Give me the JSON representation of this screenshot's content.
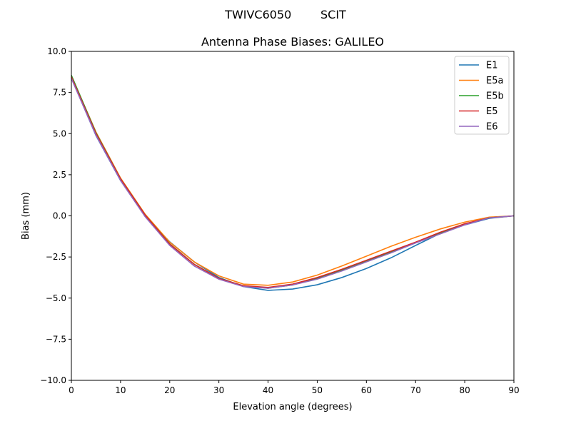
{
  "chart_data": {
    "type": "line",
    "suptitle": "TWIVC6050        SCIT",
    "title": "Antenna Phase Biases: GALILEO",
    "xlabel": "Elevation angle (degrees)",
    "ylabel": "Bias (mm)",
    "xlim": [
      0,
      90
    ],
    "ylim": [
      -10,
      10
    ],
    "xticks": [
      0,
      10,
      20,
      30,
      40,
      50,
      60,
      70,
      80,
      90
    ],
    "yticks": [
      10.0,
      7.5,
      5.0,
      2.5,
      0.0,
      -2.5,
      -5.0,
      -7.5,
      -10.0
    ],
    "ytick_labels": [
      "10.0",
      "7.5",
      "5.0",
      "2.5",
      "0.0",
      "−2.5",
      "−5.0",
      "−7.5",
      "−10.0"
    ],
    "grid": false,
    "legend_position": "top-right",
    "x": [
      0,
      5,
      10,
      15,
      20,
      25,
      30,
      35,
      40,
      45,
      50,
      55,
      60,
      65,
      70,
      75,
      80,
      85,
      90
    ],
    "series": [
      {
        "name": "E1",
        "color": "#1f77b4",
        "values": [
          8.4,
          4.88,
          2.15,
          -0.02,
          -1.58,
          -2.8,
          -3.75,
          -4.3,
          -4.53,
          -4.45,
          -4.19,
          -3.75,
          -3.2,
          -2.55,
          -1.8,
          -1.07,
          -0.55,
          -0.15,
          0.0
        ]
      },
      {
        "name": "E5a",
        "color": "#ff7f0e",
        "values": [
          8.5,
          5.1,
          2.3,
          0.1,
          -1.6,
          -2.8,
          -3.65,
          -4.15,
          -4.22,
          -4.02,
          -3.6,
          -3.05,
          -2.45,
          -1.85,
          -1.3,
          -0.8,
          -0.38,
          -0.08,
          0.0
        ]
      },
      {
        "name": "E5b",
        "color": "#2ca02c",
        "values": [
          8.55,
          5.05,
          2.25,
          0.05,
          -1.7,
          -2.95,
          -3.8,
          -4.25,
          -4.4,
          -4.2,
          -3.8,
          -3.3,
          -2.75,
          -2.2,
          -1.62,
          -1.05,
          -0.5,
          -0.12,
          0.0
        ]
      },
      {
        "name": "E5",
        "color": "#d62728",
        "values": [
          8.45,
          5.0,
          2.25,
          0.05,
          -1.72,
          -2.95,
          -3.8,
          -4.25,
          -4.35,
          -4.15,
          -3.75,
          -3.25,
          -2.7,
          -2.15,
          -1.6,
          -1.0,
          -0.48,
          -0.12,
          0.0
        ]
      },
      {
        "name": "E6",
        "color": "#9467bd",
        "values": [
          8.35,
          4.9,
          2.15,
          -0.05,
          -1.8,
          -3.05,
          -3.85,
          -4.3,
          -4.4,
          -4.2,
          -3.85,
          -3.35,
          -2.8,
          -2.25,
          -1.65,
          -1.1,
          -0.55,
          -0.12,
          0.0
        ]
      }
    ]
  }
}
